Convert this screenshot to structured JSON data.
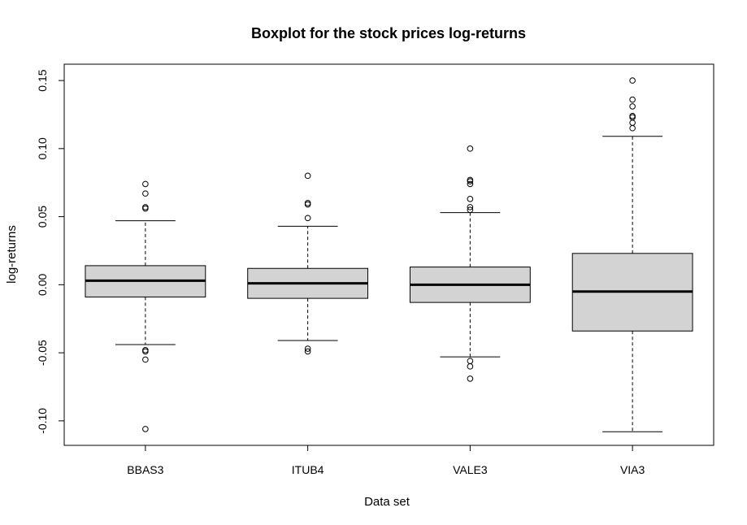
{
  "chart_data": {
    "type": "boxplot",
    "title": "Boxplot for the stock prices log-returns",
    "xlabel": "Data set",
    "ylabel": "log-returns",
    "ylim": [
      -0.118,
      0.162
    ],
    "yticks": [
      -0.1,
      -0.05,
      0.0,
      0.05,
      0.1,
      0.15
    ],
    "ytick_labels": [
      "-0.10",
      "-0.05",
      "0.00",
      "0.05",
      "0.10",
      "0.15"
    ],
    "categories": [
      "BBAS3",
      "ITUB4",
      "VALE3",
      "VIA3"
    ],
    "box_fill": "#d3d3d3",
    "line_color": "#000000",
    "boxes": [
      {
        "name": "BBAS3",
        "whisker_low": -0.044,
        "q1": -0.009,
        "median": 0.003,
        "q3": 0.014,
        "whisker_high": 0.047,
        "outliers": [
          0.074,
          0.067,
          0.057,
          0.056,
          -0.048,
          -0.049,
          -0.055,
          -0.106
        ]
      },
      {
        "name": "ITUB4",
        "whisker_low": -0.041,
        "q1": -0.01,
        "median": 0.001,
        "q3": 0.012,
        "whisker_high": 0.043,
        "outliers": [
          0.08,
          0.06,
          0.059,
          0.049,
          -0.047,
          -0.049
        ]
      },
      {
        "name": "VALE3",
        "whisker_low": -0.053,
        "q1": -0.013,
        "median": 0.0,
        "q3": 0.013,
        "whisker_high": 0.053,
        "outliers": [
          0.1,
          0.077,
          0.076,
          0.074,
          0.063,
          0.057,
          0.055,
          -0.056,
          -0.06,
          -0.069
        ]
      },
      {
        "name": "VIA3",
        "whisker_low": -0.108,
        "q1": -0.034,
        "median": -0.005,
        "q3": 0.023,
        "whisker_high": 0.109,
        "outliers": [
          0.15,
          0.136,
          0.131,
          0.124,
          0.123,
          0.119,
          0.115
        ]
      }
    ]
  }
}
